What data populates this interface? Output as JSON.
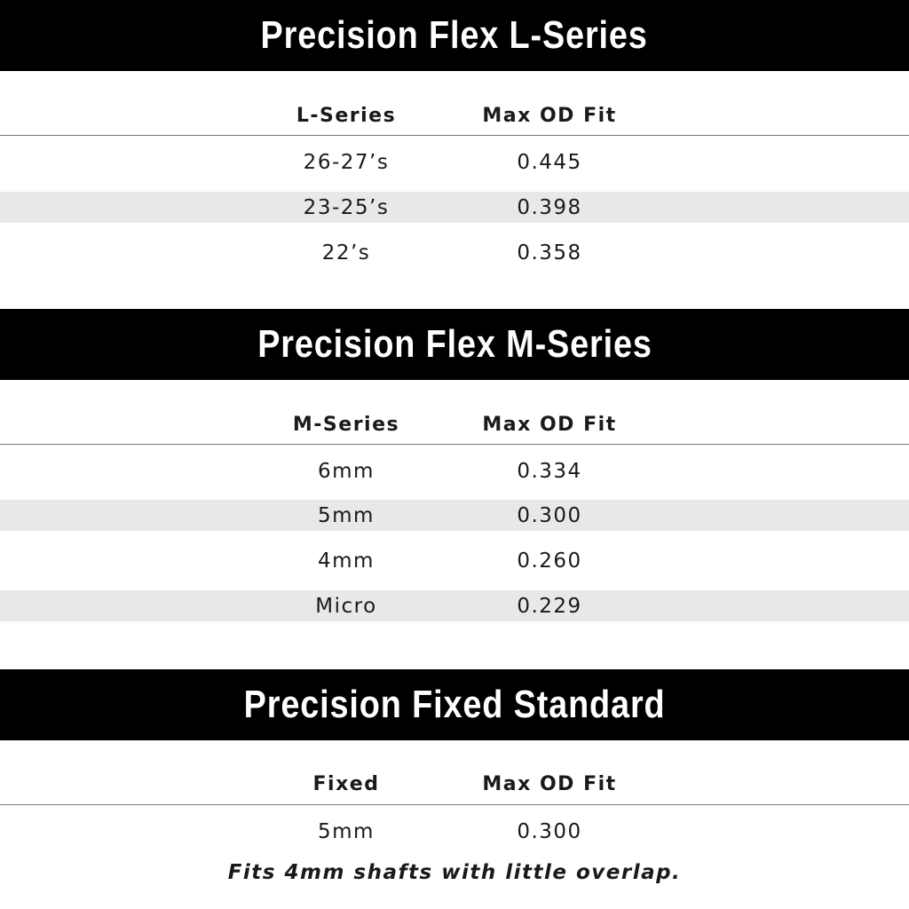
{
  "sections": [
    {
      "title": "Precision Flex L-Series",
      "columns": [
        "L-Series",
        "Max OD Fit"
      ],
      "rows": [
        [
          "26-27’s",
          "0.445"
        ],
        [
          "23-25’s",
          "0.398"
        ],
        [
          "22’s",
          "0.358"
        ]
      ]
    },
    {
      "title": "Precision Flex M-Series",
      "columns": [
        "M-Series",
        "Max OD Fit"
      ],
      "rows": [
        [
          "6mm",
          "0.334"
        ],
        [
          "5mm",
          "0.300"
        ],
        [
          "4mm",
          "0.260"
        ],
        [
          "Micro",
          "0.229"
        ]
      ]
    },
    {
      "title": "Precision Fixed Standard",
      "columns": [
        "Fixed",
        "Max OD Fit"
      ],
      "rows": [
        [
          "5mm",
          "0.300"
        ]
      ]
    }
  ],
  "footnote": "Fits 4mm shafts with little overlap.",
  "colors": {
    "band": "#000000",
    "alt_row": "#e8e8e8"
  }
}
